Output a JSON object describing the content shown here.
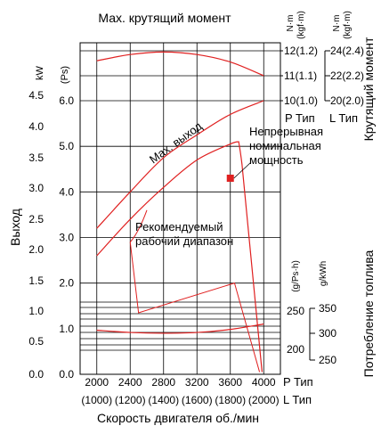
{
  "chart_data": {
    "type": "line",
    "title": "Мах. крутящий момент",
    "xlabel": "Скорость двигателя об./мин",
    "ylabel_left": "Выход",
    "ylabel_right_top": "Крутящий момент",
    "ylabel_right_bottom": "Потребление топлива",
    "kw_unit": "kW",
    "ps_unit": "(Ps)",
    "nm_unit": "N·m",
    "kgfm_unit": "(kgf·m)",
    "fuel_unit_p": "(g/Ps·h)",
    "fuel_unit_l": "g/kWh",
    "x_ticks_p": [
      "2000",
      "2400",
      "2800",
      "3200",
      "3600",
      "4000"
    ],
    "x_ticks_l": [
      "(1000)",
      "(1200)",
      "(1400)",
      "(1600)",
      "(1800)",
      "(2000)"
    ],
    "x_suffix_p": "P Тип",
    "x_suffix_l": "L Тип",
    "kw_ticks": [
      "4.5",
      "4.0",
      "3.5",
      "3.0",
      "2.5",
      "2.0",
      "1.5",
      "1.0",
      "0.5",
      "0.0"
    ],
    "kw_ticks_lower": [
      "1.0",
      "0.5"
    ],
    "ps_ticks": [
      "6.0",
      "5.0",
      "4.0",
      "3.0",
      "2.0",
      "1.0",
      "0.0"
    ],
    "torque_p_ticks": [
      "12(1.2)",
      "11(1.1)",
      "10(1.0)"
    ],
    "torque_l_ticks": [
      "24(2.4)",
      "22(2.2)",
      "20(2.0)"
    ],
    "torque_p_label": "P Тип",
    "torque_l_label": "L Тип",
    "fuel_p_ticks": [
      "250",
      "200"
    ],
    "fuel_l_ticks": [
      "350",
      "300",
      "250"
    ],
    "annotations": {
      "max_output": "Мах. выход",
      "continuous": [
        "Непрерывная",
        "номинальная",
        "мощность"
      ],
      "recommended": [
        "Рекомендуемый",
        "рабочий диапазон"
      ]
    },
    "xlim_rpm_p": [
      1800,
      4200
    ],
    "rated_point": {
      "rpm_p": 3600,
      "ps": 4.3
    },
    "series": [
      {
        "name": "Мах. выход",
        "x": [
          2000,
          2400,
          2800,
          3200,
          3600,
          4000
        ],
        "y_ps": [
          3.2,
          4.0,
          4.75,
          5.25,
          5.7,
          6.0
        ]
      },
      {
        "name": "Непрерывная номинальная мощность",
        "x": [
          2000,
          2400,
          2800,
          3200,
          3600,
          3700
        ],
        "y_ps": [
          2.6,
          3.4,
          4.1,
          4.7,
          5.05,
          5.1
        ]
      },
      {
        "name": "Мах. крутящий момент",
        "x": [
          2000,
          2400,
          2800,
          3200,
          3600,
          4000
        ],
        "y_kgfm": [
          11.6,
          11.85,
          11.95,
          11.85,
          11.55,
          11.0
        ]
      },
      {
        "name": "Потребление топлива",
        "x": [
          2000,
          2400,
          2800,
          3200,
          3600,
          4000
        ],
        "y_fuel_p": [
          225,
          222,
          221,
          222,
          226,
          233
        ]
      }
    ],
    "recommended_range_rpm_p": [
      2400,
      3950
    ],
    "colors": {
      "curves": "#e02020",
      "grid": "#000000",
      "marker": "#e02020"
    },
    "grid": true
  }
}
